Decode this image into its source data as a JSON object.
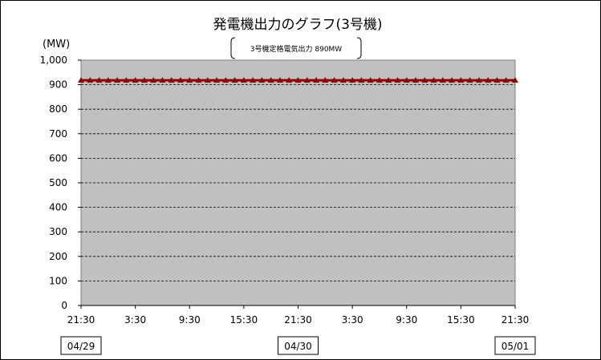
{
  "chart_data": {
    "type": "line",
    "title": "発電機出力のグラフ(3号機)",
    "ylabel": "(MW)",
    "annotation": "3号機定格電気出力 890MW",
    "ylim": [
      0,
      1000
    ],
    "y_ticks": [
      "0",
      "100",
      "200",
      "300",
      "400",
      "500",
      "600",
      "700",
      "800",
      "900",
      "1,000"
    ],
    "x_tick_labels": [
      "21:30",
      "3:30",
      "9:30",
      "15:30",
      "21:30",
      "3:30",
      "9:30",
      "15:30",
      "21:30"
    ],
    "date_labels": [
      {
        "label": "04/29",
        "at_tick": 0
      },
      {
        "label": "04/30",
        "at_tick": 4
      },
      {
        "label": "05/01",
        "at_tick": 8
      }
    ],
    "grid": true,
    "background_color": "#c0c0c0",
    "series": [
      {
        "color": "#8b0000",
        "x_range": [
          "04/29 21:30",
          "05/01 21:30"
        ],
        "interval_hours": 1,
        "values": [
          918,
          918,
          918,
          918,
          918,
          918,
          918,
          918,
          918,
          918,
          918,
          918,
          918,
          918,
          918,
          918,
          918,
          918,
          918,
          918,
          918,
          918,
          918,
          918,
          918,
          918,
          918,
          918,
          918,
          918,
          918,
          918,
          918,
          918,
          918,
          918,
          918,
          918,
          918,
          918,
          918,
          918,
          918,
          918,
          918,
          918,
          918,
          918,
          918
        ]
      }
    ]
  }
}
